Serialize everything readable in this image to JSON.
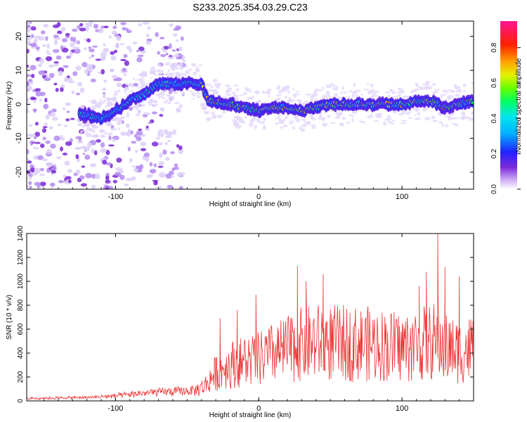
{
  "title": "S233.2025.354.03.29.C23",
  "colors": {
    "snr_line": "#ee3333",
    "axis": "#000000"
  },
  "chart_data": [
    {
      "type": "heatmap",
      "xlabel": "Height of straight line (km)",
      "ylabel": "Frequency (Hz)",
      "xlim": [
        -162,
        150
      ],
      "ylim": [
        -25,
        24.5
      ],
      "x_ticks": [
        -100,
        0,
        100
      ],
      "y_ticks": [
        -20,
        -10,
        0,
        10,
        20
      ],
      "colorbar": {
        "label": "Normalized spectral amplitude",
        "range": [
          0,
          0.95
        ],
        "ticks": [
          0,
          0.2,
          0.4,
          0.6,
          0.8
        ],
        "colormap": "rainbow"
      },
      "ridge": {
        "x": [
          -122,
          -110,
          -100,
          -90,
          -80,
          -70,
          -60,
          -50,
          -40,
          -35,
          -30,
          -20,
          -10,
          0,
          10,
          20,
          30,
          40,
          50,
          60,
          70,
          80,
          90,
          100,
          110,
          120,
          130,
          140,
          150
        ],
        "y": [
          -3,
          -4,
          -2,
          1,
          3,
          6,
          6,
          6,
          6,
          1,
          1,
          0,
          -1,
          -2,
          -1,
          -1,
          -2,
          -1,
          0,
          0,
          0,
          0,
          0,
          0,
          1,
          1,
          -1,
          0,
          1
        ]
      }
    },
    {
      "type": "line",
      "xlabel": "Height of straight line (km)",
      "ylabel": "SNR (10 * v/v)",
      "xlim": [
        -162,
        150
      ],
      "ylim": [
        0,
        1400
      ],
      "x_ticks": [
        -100,
        0,
        100
      ],
      "y_ticks": [
        0,
        200,
        400,
        600,
        800,
        1000,
        1200,
        1400
      ],
      "envelope": {
        "x": [
          -162,
          -120,
          -100,
          -90,
          -80,
          -60,
          -45,
          -38,
          -32,
          -28,
          -20,
          -10,
          0,
          10,
          20,
          30,
          40,
          60,
          80,
          100,
          110,
          120,
          125,
          130,
          140,
          150
        ],
        "y": [
          20,
          30,
          45,
          60,
          75,
          90,
          100,
          150,
          260,
          320,
          380,
          420,
          440,
          500,
          540,
          600,
          620,
          610,
          600,
          570,
          590,
          620,
          640,
          560,
          520,
          560
        ]
      },
      "peaks": [
        {
          "x": 125,
          "y": 1400
        },
        {
          "x": 130,
          "y": 1120
        },
        {
          "x": 27,
          "y": 1130
        },
        {
          "x": 117,
          "y": 1080
        },
        {
          "x": 45,
          "y": 1060
        },
        {
          "x": 112,
          "y": 960
        },
        {
          "x": 140,
          "y": 1040
        },
        {
          "x": -2,
          "y": 890
        },
        {
          "x": 33,
          "y": 1000
        },
        {
          "x": -27,
          "y": 690
        },
        {
          "x": -15,
          "y": 760
        }
      ]
    }
  ]
}
